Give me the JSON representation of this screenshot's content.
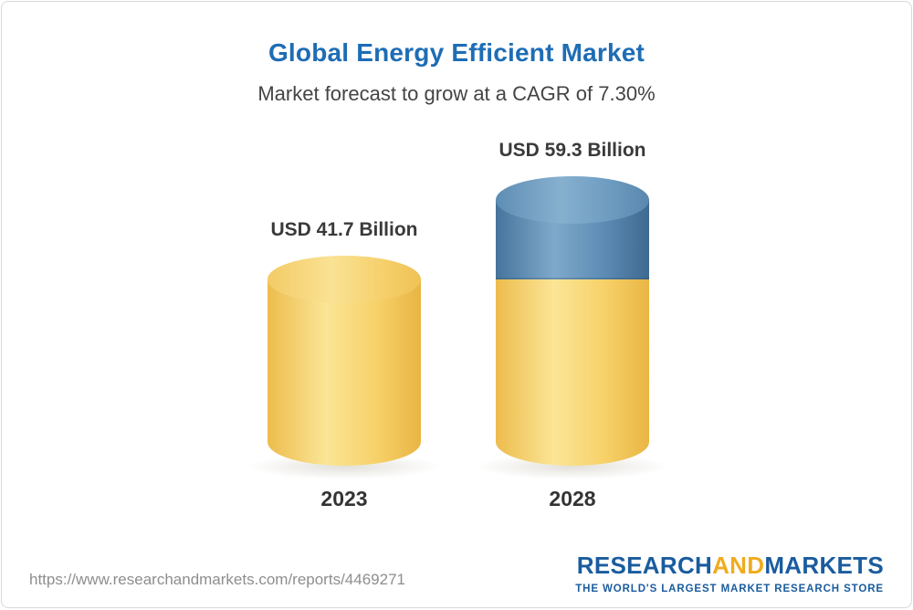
{
  "title": "Global Energy Efficient Market",
  "subtitle": "Market forecast to grow at a CAGR of 7.30%",
  "chart_data": {
    "type": "bar",
    "categories": [
      "2023",
      "2028"
    ],
    "values": [
      41.7,
      59.3
    ],
    "value_labels": [
      "USD 41.7 Billion",
      "USD 59.3 Billion"
    ],
    "unit": "USD Billion",
    "title": "Global Energy Efficient Market",
    "subtitle": "Market forecast to grow at a CAGR of 7.30%",
    "cagr": "7.30%",
    "legend_position": "none",
    "grid": false,
    "colors": {
      "base_segment": "#F6CE63",
      "growth_segment": "#4E81AB"
    },
    "notes": "2028 cylinder is stacked: yellow base equals 2023 value, blue top is incremental growth"
  },
  "footer": {
    "url": "https://www.researchandmarkets.com/reports/4469271",
    "logo": {
      "part1": "RESEARCH",
      "part2": "AND",
      "part3": "MARKETS",
      "tagline": "THE WORLD'S LARGEST MARKET RESEARCH STORE"
    }
  }
}
